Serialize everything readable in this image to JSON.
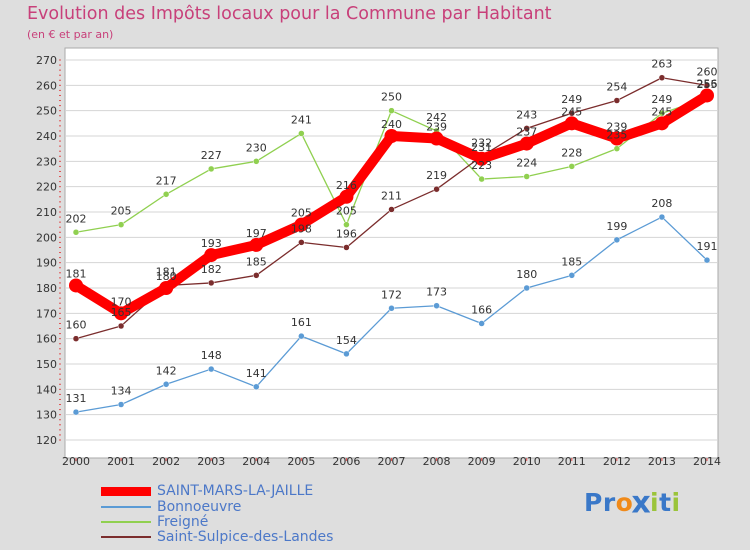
{
  "chart_data": {
    "type": "line",
    "title": "Evolution des Impôts locaux pour la Commune par Habitant",
    "subtitle": "(en € et par an)",
    "x": [
      "2000",
      "2001",
      "2002",
      "2003",
      "2004",
      "2005",
      "2006",
      "2007",
      "2008",
      "2009",
      "2010",
      "2011",
      "2012",
      "2013",
      "2014"
    ],
    "yticks": [
      120,
      130,
      140,
      150,
      160,
      170,
      180,
      190,
      200,
      210,
      220,
      230,
      240,
      250,
      260,
      270
    ],
    "ylim": [
      120,
      270
    ],
    "grid": "horizontal",
    "legend_position": "bottom-left",
    "series": [
      {
        "name": "SAINT-MARS-LA-JAILLE",
        "color": "#ff0000",
        "values": [
          181,
          170,
          180,
          193,
          197,
          205,
          216,
          240,
          239,
          231,
          237,
          245,
          239,
          245,
          256
        ]
      },
      {
        "name": "Bonnoeuvre",
        "color": "#5b9bd5",
        "values": [
          131,
          134,
          142,
          148,
          141,
          161,
          154,
          172,
          173,
          166,
          180,
          185,
          199,
          208,
          191
        ]
      },
      {
        "name": "Freigné",
        "color": "#90d050",
        "values": [
          202,
          205,
          217,
          227,
          230,
          241,
          205,
          250,
          242,
          223,
          224,
          228,
          235,
          249,
          255
        ]
      },
      {
        "name": "Saint-Sulpice-des-Landes",
        "color": "#7b2d2d",
        "values": [
          160,
          165,
          181,
          182,
          185,
          198,
          196,
          211,
          219,
          232,
          243,
          249,
          254,
          263,
          260
        ]
      }
    ]
  },
  "brand": {
    "letters": [
      "P",
      "r",
      "o",
      "x",
      "i",
      "t",
      "i"
    ],
    "colors": [
      "#3a78c8",
      "#3a78c8",
      "#f08a1a",
      "#3a78c8",
      "#9bc43a",
      "#3a78c8",
      "#9bc43a"
    ]
  }
}
